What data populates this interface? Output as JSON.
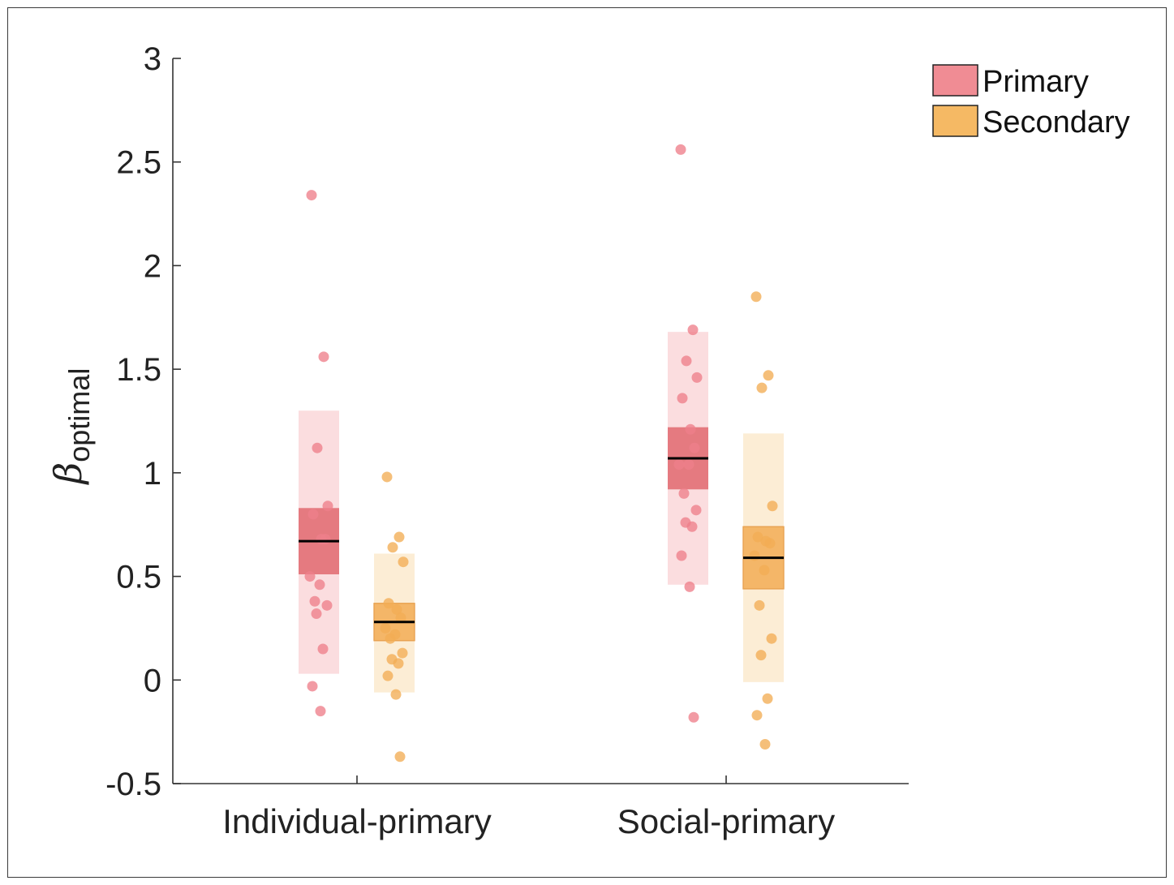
{
  "chart_data": {
    "type": "scatter",
    "subtype": "box-strip",
    "ylabel": "β",
    "ylabel_subscript": "optimal",
    "ylim": [
      -0.5,
      3
    ],
    "yticks": [
      -0.5,
      0,
      0.5,
      1,
      1.5,
      2,
      2.5,
      3
    ],
    "ytick_labels": [
      "-0.5",
      "0",
      "0.5",
      "1",
      "1.5",
      "2",
      "2.5",
      "3"
    ],
    "categories": [
      "Individual-primary",
      "Social-primary"
    ],
    "legend": {
      "position": "top-right",
      "entries": [
        "Primary",
        "Secondary"
      ]
    },
    "colors": {
      "primary_fill": "#f08c94",
      "primary_box": "#e06870",
      "primary_band": "#fbd9dc",
      "primary_point": "#ee7f8a",
      "secondary_fill": "#f5b964",
      "secondary_box": "#f3ad55",
      "secondary_band": "#fcebd0",
      "secondary_point": "#f2ad55",
      "mean_line": "#000000"
    },
    "series": [
      {
        "name": "Primary",
        "groups": [
          {
            "category": "Individual-primary",
            "mean": 0.67,
            "box": [
              0.51,
              0.83
            ],
            "band": [
              0.03,
              1.3
            ],
            "points": [
              2.34,
              1.56,
              1.12,
              0.84,
              0.8,
              0.68,
              0.68,
              0.5,
              0.46,
              0.38,
              0.36,
              0.32,
              0.15,
              -0.03,
              -0.15
            ]
          },
          {
            "category": "Social-primary",
            "mean": 1.07,
            "box": [
              0.92,
              1.22
            ],
            "band": [
              0.46,
              1.68
            ],
            "points": [
              2.56,
              1.69,
              1.54,
              1.46,
              1.36,
              1.21,
              1.12,
              1.04,
              1.04,
              0.9,
              0.82,
              0.76,
              0.74,
              0.6,
              0.45,
              -0.18
            ]
          }
        ]
      },
      {
        "name": "Secondary",
        "groups": [
          {
            "category": "Individual-primary",
            "mean": 0.28,
            "box": [
              0.19,
              0.37
            ],
            "band": [
              -0.06,
              0.61
            ],
            "points": [
              0.98,
              0.69,
              0.64,
              0.57,
              0.37,
              0.34,
              0.3,
              0.25,
              0.22,
              0.2,
              0.13,
              0.1,
              0.08,
              0.02,
              -0.07,
              -0.37
            ]
          },
          {
            "category": "Social-primary",
            "mean": 0.59,
            "box": [
              0.44,
              0.74
            ],
            "band": [
              -0.01,
              1.19
            ],
            "points": [
              1.85,
              1.47,
              1.41,
              0.84,
              0.69,
              0.67,
              0.66,
              0.6,
              0.53,
              0.36,
              0.2,
              0.12,
              -0.09,
              -0.17,
              -0.31
            ]
          }
        ]
      }
    ]
  }
}
